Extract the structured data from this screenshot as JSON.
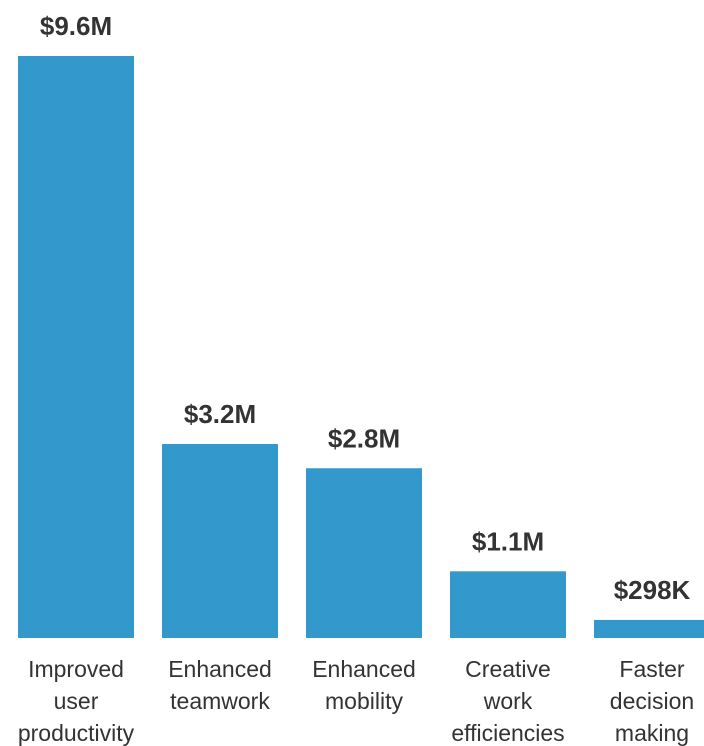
{
  "chart_data": {
    "type": "bar",
    "title": "",
    "xlabel": "",
    "ylabel": "",
    "ylim": [
      0,
      9.6
    ],
    "grid": false,
    "legend": "none",
    "bar_color": "#3399CC",
    "categories": [
      [
        "Improved",
        "user",
        "productivity"
      ],
      [
        "Enhanced",
        "teamwork"
      ],
      [
        "Enhanced",
        "mobility"
      ],
      [
        "Creative",
        "work",
        "efficiencies"
      ],
      [
        "Faster",
        "decision",
        "making"
      ]
    ],
    "values": [
      9.6,
      3.2,
      2.8,
      1.1,
      0.298
    ],
    "value_labels": [
      "$9.6M",
      "$3.2M",
      "$2.8M",
      "$1.1M",
      "$298K"
    ],
    "units": "millions USD"
  }
}
